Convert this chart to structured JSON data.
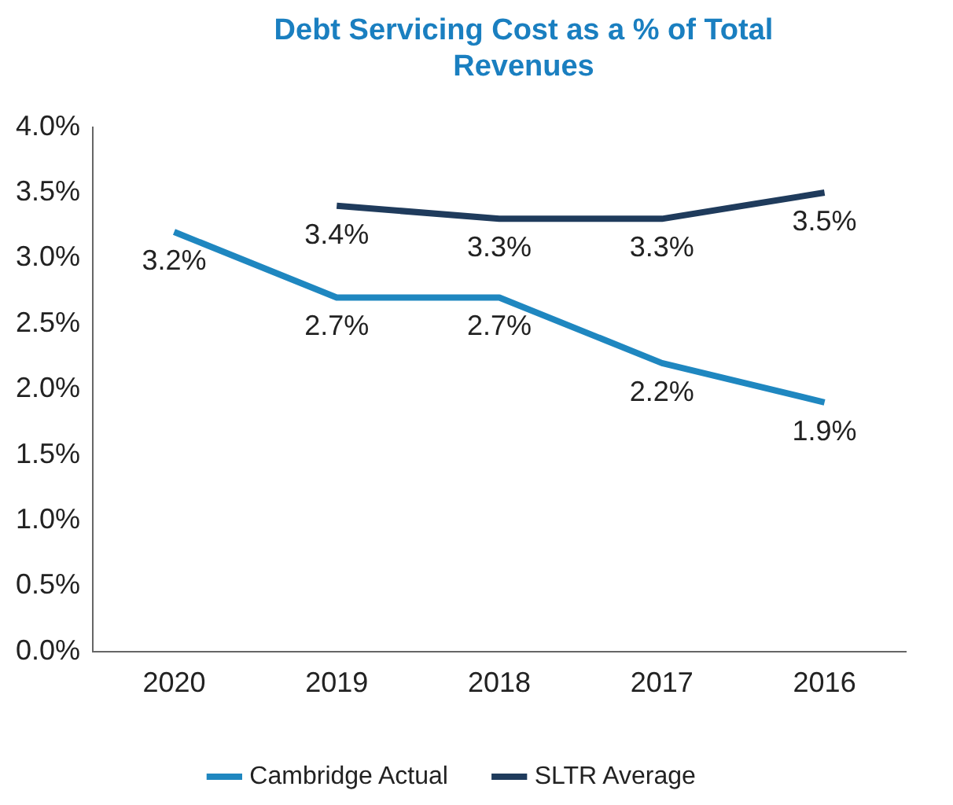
{
  "chart_data": {
    "type": "line",
    "title": "Debt Servicing Cost as a % of Total Revenues",
    "categories": [
      "2020",
      "2019",
      "2018",
      "2017",
      "2016"
    ],
    "series": [
      {
        "name": "Cambridge Actual",
        "color": "#1f87c0",
        "values": [
          3.2,
          2.7,
          2.7,
          2.2,
          1.9
        ],
        "value_labels": [
          "3.2%",
          "2.7%",
          "2.7%",
          "2.2%",
          "1.9%"
        ]
      },
      {
        "name": "SLTR Average",
        "color": "#1f3b5c",
        "values": [
          null,
          3.4,
          3.3,
          3.3,
          3.5
        ],
        "value_labels": [
          null,
          "3.4%",
          "3.3%",
          "3.3%",
          "3.5%"
        ]
      }
    ],
    "ylim": [
      0,
      4
    ],
    "yticks": [
      {
        "value": 0,
        "label": "0.0%"
      },
      {
        "value": 0.5,
        "label": "0.5%"
      },
      {
        "value": 1,
        "label": "1.0%"
      },
      {
        "value": 1.5,
        "label": "1.5%"
      },
      {
        "value": 2,
        "label": "2.0%"
      },
      {
        "value": 2.5,
        "label": "2.5%"
      },
      {
        "value": 3,
        "label": "3.0%"
      },
      {
        "value": 3.5,
        "label": "3.5%"
      },
      {
        "value": 4,
        "label": "4.0%"
      }
    ],
    "grid": false,
    "legend": "bottom",
    "marker": "none",
    "line_style": "solid"
  }
}
